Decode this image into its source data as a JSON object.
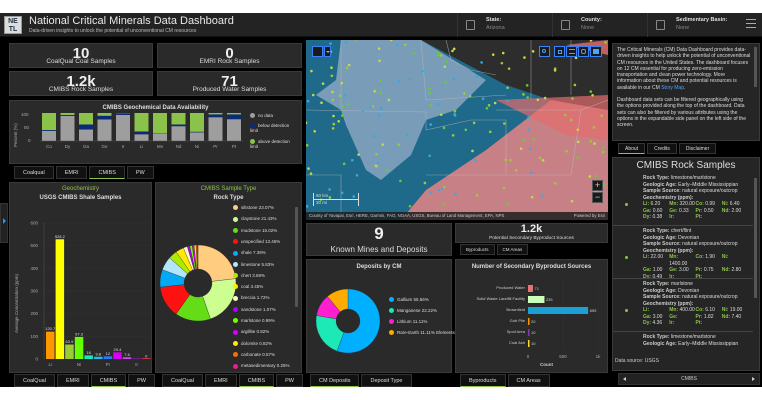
{
  "header": {
    "logo_text": "NETL",
    "title": "National Critical Minerals Data Dashboard",
    "subtitle": "Data-driven insights to unlock the potential of unconventional CM resources",
    "filters": [
      {
        "label": "State:",
        "value": "Arizona"
      },
      {
        "label": "County:",
        "value": "None"
      },
      {
        "label": "Sedimentary Basin:",
        "value": "None"
      }
    ]
  },
  "kpis": [
    {
      "value": "10",
      "label": "CoalQual Coal Samples"
    },
    {
      "value": "0",
      "label": "EMRI Rock Samples"
    },
    {
      "value": "1.2k",
      "label": "CMIBS Rock Samples"
    },
    {
      "value": "71",
      "label": "Produced Water Samples"
    }
  ],
  "availability_chart": {
    "title": "CMIBS Geochemical Data Availability",
    "ylabel": "Percent (%)",
    "yticks": [
      "100",
      "50",
      "0"
    ],
    "legend": [
      {
        "label": "no data",
        "color": "#9e9e9e"
      },
      {
        "label": "below detection limit",
        "color": "#0d2a7a"
      },
      {
        "label": "above detection limit",
        "color": "#8bc34a"
      }
    ],
    "tabs": [
      "Coalqual",
      "EMRI",
      "CMIBS",
      "PW"
    ],
    "active_tab": "CMIBS"
  },
  "geochem": {
    "header": "Geochemistry",
    "title": "USGS CMIBS Shale Samples",
    "ylabel": "Average Concentration (ppm)",
    "yticks": [
      "600",
      "500",
      "400",
      "300",
      "200",
      "100",
      "0"
    ],
    "xticks": [
      "Li",
      "Ni",
      "Pr",
      "Ir"
    ],
    "tabs": [
      "CoalQual",
      "EMRI",
      "CMIBS",
      "PW"
    ],
    "active_tab": "CMIBS"
  },
  "sample_type": {
    "header": "CMIBS Sample Type",
    "title": "Rock Type",
    "tabs": [
      "CoalQual",
      "EMRI",
      "CMIBS",
      "PW"
    ],
    "active_tab": "CMIBS"
  },
  "map": {
    "attribution": "County of Yavapai, Esri, HERE, Garmin, FAO, NOAA, USGS, Bureau of Land Management, EPA, NPS",
    "powered_by": "Powered by Esri",
    "scale_km": "60 km",
    "scale_mi": "30 mi",
    "zoom_in": "+",
    "zoom_out": "−"
  },
  "mines_kpi": {
    "value": "9",
    "label": "Known Mines and Deposits"
  },
  "byproduct_kpi": {
    "value": "1.2k",
    "label": "Potential Secondary Byproduct Sources",
    "tabs": [
      "Byproducts",
      "CM Areas"
    ],
    "active_tab": "Byproducts"
  },
  "deposits": {
    "title": "Deposits by CM",
    "tabs": [
      "CM Deposits",
      "Deposit Type"
    ],
    "active_tab": "CM Deposits"
  },
  "byproducts": {
    "title": "Number of Secondary Byproduct Sources",
    "xlabel": "Count",
    "xticks": [
      "0",
      "500",
      "1k"
    ],
    "tabs": [
      "Byproducts",
      "CM Areas"
    ],
    "active_tab": "Byproducts"
  },
  "about": {
    "para1": "The Critical Minerals (CM) Data Dashboard provides data-driven insights to help unlock the potential of unconventional CM resources in the United States. The dashboard focuses on 12 CM essential for producing zero-emission transportation and clean power technology. More information about these CM and potential resources is available in our CM ",
    "link": "Story Map",
    "para2": "Dashboard data sets can be filtered geographically using the options provided along the top of the dashboard. Data sets can also be filtered by various attributes using the options in the expandable side panel on the left side of the screen.",
    "tabs": [
      "About",
      "Credits",
      "Disclaimer"
    ],
    "active_tab": "About"
  },
  "rock_samples": {
    "title": "CMIBS Rock Samples",
    "labels": {
      "rock_type": "Rock Type:",
      "age": "Geologic Age:",
      "source": "Sample Source:",
      "geochem": "Geochemistry (ppm):"
    },
    "entries": [
      {
        "rock_type": "limestone/marlstone",
        "age": "Early–Middle Mississippian",
        "source": "natural exposure/outcrop",
        "values": [
          [
            "Li:",
            "6.20"
          ],
          [
            "Mn:",
            "320.00"
          ],
          [
            "Co:",
            "0.99"
          ],
          [
            "Ni:",
            "6.40"
          ],
          [
            "Ga:",
            "0.60"
          ],
          [
            "Ge:",
            "0.33"
          ],
          [
            "Pr:",
            "0.50"
          ],
          [
            "Nd:",
            "2.00"
          ],
          [
            "Dy:",
            "0.38"
          ],
          [
            "Ir:",
            ""
          ],
          [
            "Pt:",
            ""
          ],
          [
            "",
            ""
          ]
        ]
      },
      {
        "rock_type": "chert/flint",
        "age": "Devonian",
        "source": "natural exposure/outcrop",
        "values": [
          [
            "Li:",
            "22.00"
          ],
          [
            "Mn:",
            "1400.00"
          ],
          [
            "Co:",
            "1.90"
          ],
          [
            "Ni:",
            ""
          ],
          [
            "Ga:",
            "1.00"
          ],
          [
            "Ge:",
            "3.00"
          ],
          [
            "Pr:",
            "0.75"
          ],
          [
            "Nd:",
            "2.80"
          ],
          [
            "Dy:",
            "0.49"
          ],
          [
            "Ir:",
            ""
          ],
          [
            "Pt:",
            ""
          ],
          [
            "",
            ""
          ]
        ]
      },
      {
        "rock_type": "marlstone",
        "age": "Devonian",
        "source": "natural exposure/outcrop",
        "values": [
          [
            "Li:",
            ""
          ],
          [
            "Mn:",
            "400.00"
          ],
          [
            "Co:",
            "6.10"
          ],
          [
            "Ni:",
            "19.00"
          ],
          [
            "Ga:",
            "3.00"
          ],
          [
            "Ge:",
            ""
          ],
          [
            "Pr:",
            "1.82"
          ],
          [
            "Nd:",
            "7.40"
          ],
          [
            "Dy:",
            "4.36"
          ],
          [
            "Ir:",
            ""
          ],
          [
            "Pt:",
            ""
          ],
          [
            "",
            ""
          ]
        ]
      },
      {
        "rock_type": "limestone/marlstone",
        "age": "Early–Middle Mississippian"
      }
    ],
    "data_source": "Data source: USGS",
    "pager_label": "CMIBS"
  },
  "chart_data": [
    {
      "type": "bar",
      "title": "CMIBS Geochemical Data Availability",
      "stacked": true,
      "categories": [
        "Co",
        "Dy",
        "Ga",
        "Ge",
        "Ir",
        "Li",
        "Mn",
        "Nd",
        "Ni",
        "Pr",
        "Pt"
      ],
      "series": [
        {
          "name": "no data",
          "color": "#9e9e9e",
          "values": [
            36,
            90,
            41,
            77,
            93,
            24,
            27,
            53,
            31,
            85,
            78
          ]
        },
        {
          "name": "below detection limit",
          "color": "#0d2a7a",
          "values": [
            3,
            3,
            18,
            13,
            6,
            10,
            1,
            6,
            2,
            10,
            17
          ]
        },
        {
          "name": "above detection limit",
          "color": "#8bc34a",
          "values": [
            61,
            7,
            41,
            10,
            1,
            66,
            72,
            41,
            67,
            5,
            5
          ]
        }
      ],
      "ylabel": "Percent (%)",
      "ylim": [
        0,
        100
      ]
    },
    {
      "type": "bar",
      "title": "USGS CMIBS Shale Samples",
      "categories": [
        "Li",
        "Mn",
        "Co",
        "Ni",
        "Ga",
        "Ge",
        "Pr",
        "Nd",
        "Dy",
        "Ir",
        "Pt"
      ],
      "values": [
        120.7,
        528.2,
        63.9,
        97.3,
        16,
        9.8,
        12,
        29.4,
        7.6,
        0,
        0
      ],
      "labels": [
        "120.7",
        "528.2",
        "63.9",
        "97.3",
        "16",
        "9.8",
        "12",
        "29.4",
        "7.6",
        "",
        "0"
      ],
      "colors": [
        "#ff9800",
        "#ffff00",
        "#9ccc33",
        "#66ff00",
        "#1de9b6",
        "#29b6f6",
        "#2979ff",
        "#d500f9",
        "#e040fb",
        "#7b1fa2",
        "#e53935"
      ],
      "ylabel": "Average Concentration (ppm)",
      "ylim": [
        0,
        600
      ]
    },
    {
      "type": "pie",
      "title": "Rock Type",
      "categories": [
        "siltstone",
        "claystone",
        "mudstone",
        "unspecified",
        "shale",
        "limestone",
        "chert",
        "coal",
        "breccia",
        "sandstone",
        "marlstone",
        "argillite",
        "dolomite",
        "carbonate",
        "metasedimentary"
      ],
      "values": [
        23.07,
        21.43,
        15.02,
        13.46,
        7.39,
        5.83,
        3.69,
        3.45,
        1.72,
        1.07,
        0.99,
        0.82,
        0.82,
        0.57,
        0.25
      ],
      "labels": [
        "siltstone 23.07%",
        "claystone 21.43%",
        "mudstone 15.02%",
        "unspecified 13.46%",
        "shale 7.39%",
        "limestone 5.83%",
        "chert 3.69%",
        "coal 3.45%",
        "breccia 1.72%",
        "sandstone 1.07%",
        "marlstone 0.99%",
        "argillite 0.82%",
        "dolomite 0.82%",
        "carbonate 0.57%",
        "metasedimentary 0.25%"
      ],
      "colors": [
        "#ffcc80",
        "#ccff90",
        "#64dd17",
        "#ff1111",
        "#03a9f4",
        "#b3e5fc",
        "#aeea00",
        "#ffea00",
        "#fff9c4",
        "#aa00ff",
        "#76ff03",
        "#d500f9",
        "#ffea00",
        "#ff6d00",
        "#e91e8c"
      ]
    },
    {
      "type": "pie",
      "title": "Deposits by CM",
      "categories": [
        "Gallium",
        "Manganese",
        "Lithium",
        "Rare-Earth Elements"
      ],
      "values": [
        55.56,
        22.22,
        11.11,
        11.11
      ],
      "labels": [
        "Gallium 55.56%",
        "Manganese 22.22%",
        "Lithium 11.11%",
        "Rare-Earth 11.11% Elements"
      ],
      "colors": [
        "#00b0ff",
        "#1de9b6",
        "#ff1fd0",
        "#ffab00"
      ]
    },
    {
      "type": "bar",
      "orientation": "horizontal",
      "title": "Number of Secondary Byproduct Sources",
      "categories": [
        "Produced Water",
        "Solid Waste Landfill Facility",
        "Brownfield",
        "Gob Pile",
        "Spoil Area",
        "Coal Ash"
      ],
      "values": [
        71,
        235,
        859,
        20,
        10,
        10
      ],
      "colors": [
        "#e57373",
        "#ccffbb",
        "#1ca0d8",
        "#ff9800",
        "#7b3fa0",
        "#fdd835"
      ],
      "xlabel": "Count",
      "xlim": [
        0,
        1000
      ]
    }
  ]
}
